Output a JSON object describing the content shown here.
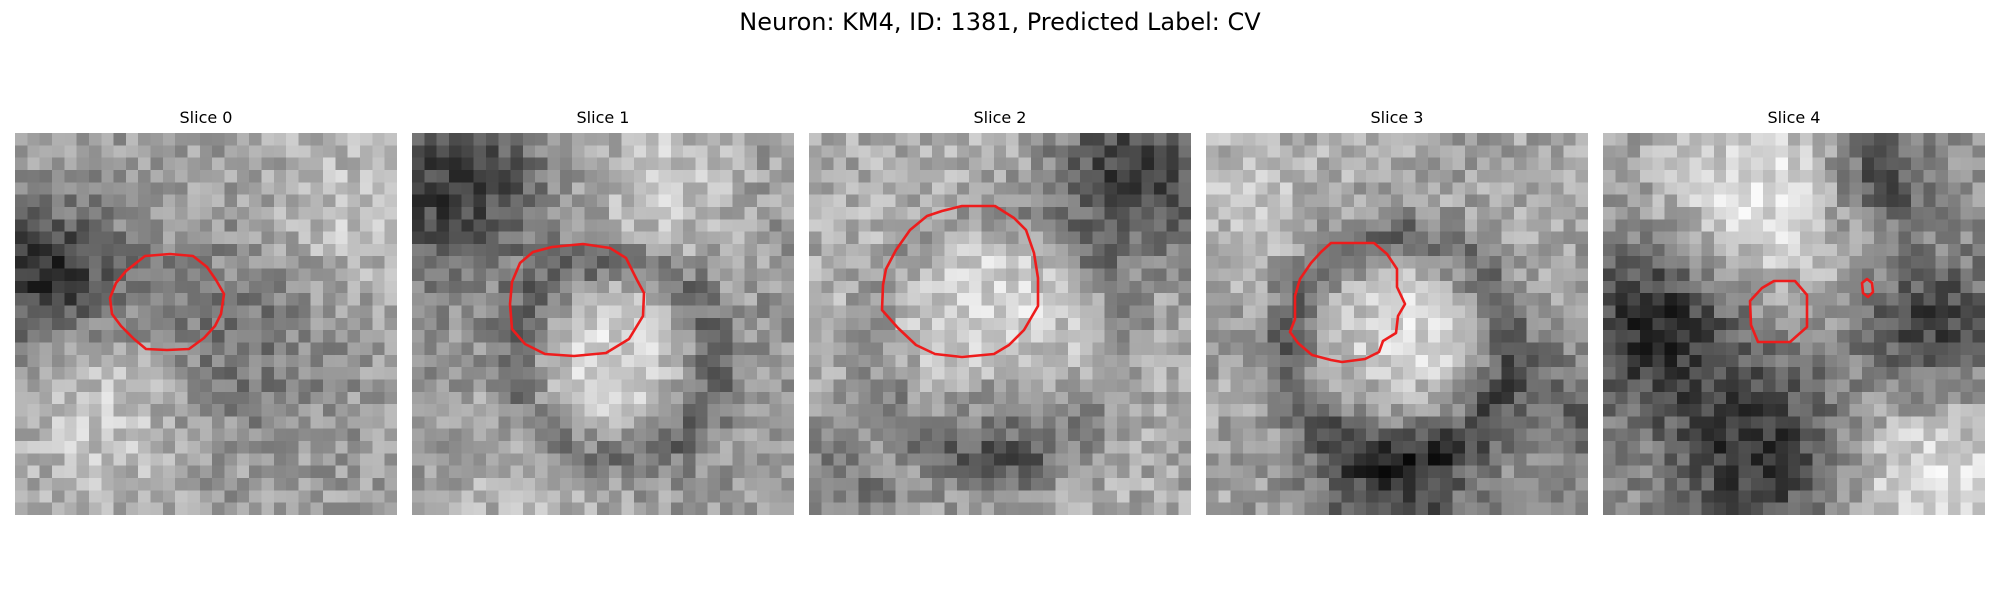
{
  "figure": {
    "title": "Neuron: KM4, ID: 1381, Predicted Label: CV"
  },
  "panels": [
    {
      "title": "Slice 0"
    },
    {
      "title": "Slice 1"
    },
    {
      "title": "Slice 2"
    },
    {
      "title": "Slice 3"
    },
    {
      "title": "Slice 4"
    }
  ],
  "colors": {
    "contour": "#ee1c1c",
    "colormap": "grayscale",
    "background": "#ffffff"
  }
}
